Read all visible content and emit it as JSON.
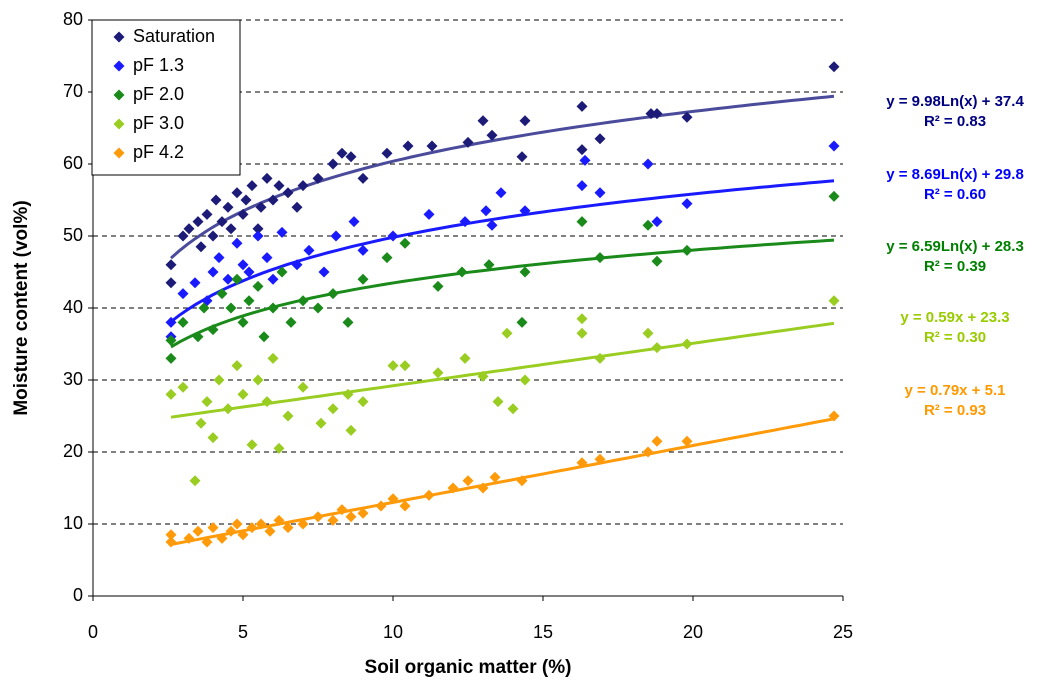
{
  "chart_data": {
    "type": "scatter",
    "x_label": "Soil organic matter (%)",
    "y_label": "Moisture content (vol%)",
    "xlim": [
      0,
      25
    ],
    "xticks": [
      0,
      5,
      10,
      15,
      20,
      25
    ],
    "ylim": [
      0,
      80
    ],
    "yticks": [
      0,
      10,
      20,
      30,
      40,
      50,
      60,
      70,
      80
    ],
    "grid": true,
    "legend": "upper left",
    "series": [
      {
        "name": "Saturation",
        "color": "#1c1c78",
        "line_color": "#4b4b9b",
        "x": [
          2.6,
          2.6,
          3.0,
          3.2,
          3.5,
          3.6,
          3.8,
          4.0,
          4.1,
          4.3,
          4.5,
          4.6,
          4.8,
          5.0,
          5.1,
          5.3,
          5.5,
          5.6,
          5.8,
          6.0,
          6.2,
          6.5,
          6.8,
          7.0,
          7.5,
          8.0,
          8.3,
          8.6,
          9.0,
          9.8,
          10.5,
          11.3,
          12.5,
          13.0,
          13.3,
          14.4,
          14.3,
          16.3,
          16.3,
          16.9,
          18.6,
          18.8,
          19.8,
          24.7
        ],
        "values": [
          46,
          43.5,
          50,
          51,
          52,
          48.5,
          53,
          50,
          55,
          52,
          54,
          51,
          56,
          53,
          55,
          57,
          51,
          54,
          58,
          55,
          57,
          56,
          54,
          57,
          58,
          60,
          61.5,
          61,
          58,
          61.5,
          62.5,
          62.5,
          63,
          66,
          64,
          66,
          61,
          68,
          62,
          63.5,
          67,
          67,
          66.5,
          73.5
        ],
        "trendline": {
          "type": "log",
          "slope": 9.98,
          "intercept": 37.4,
          "equation": "y = 9.98Ln(x) + 37.4",
          "r2": "R² = 0.83",
          "label_color": "#000080"
        }
      },
      {
        "name": "pF 1.3",
        "color": "#1a1aff",
        "line_color": "#1a1aff",
        "x": [
          2.6,
          2.6,
          3.0,
          3.4,
          3.8,
          4.0,
          4.2,
          4.5,
          4.8,
          5.0,
          5.2,
          5.5,
          5.8,
          6.0,
          6.3,
          6.8,
          7.2,
          7.7,
          8.1,
          8.7,
          9.0,
          10.0,
          11.2,
          12.4,
          13.1,
          13.3,
          13.6,
          14.4,
          16.3,
          16.4,
          16.9,
          18.5,
          18.8,
          19.8,
          24.7
        ],
        "values": [
          36,
          38,
          42,
          43.5,
          41,
          45,
          47,
          44,
          49,
          46,
          45,
          50,
          47,
          44,
          50.5,
          46,
          48,
          45,
          50,
          52,
          48,
          50,
          53,
          52,
          53.5,
          51.5,
          56,
          53.5,
          57,
          60.5,
          56,
          60,
          52,
          54.5,
          62.5
        ],
        "trendline": {
          "type": "log",
          "slope": 8.69,
          "intercept": 29.8,
          "equation": "y = 8.69Ln(x) + 29.8",
          "r2": "R² = 0.60",
          "label_color": "#0000ff"
        }
      },
      {
        "name": "pF 2.0",
        "color": "#1a8a1a",
        "line_color": "#1a8a1a",
        "x": [
          2.6,
          2.6,
          3.0,
          3.5,
          3.7,
          4.0,
          4.3,
          4.6,
          4.8,
          5.0,
          5.2,
          5.5,
          5.7,
          6.0,
          6.3,
          6.6,
          7.0,
          7.5,
          8.0,
          8.5,
          9.0,
          9.8,
          10.4,
          11.5,
          12.3,
          13.2,
          14.3,
          14.4,
          16.3,
          16.9,
          18.5,
          18.8,
          19.8,
          24.7
        ],
        "values": [
          33,
          35.5,
          38,
          36,
          40,
          37,
          42,
          40,
          44,
          38,
          41,
          43,
          36,
          40,
          45,
          38,
          41,
          40,
          42,
          38,
          44,
          47,
          49,
          43,
          45,
          46,
          38,
          45,
          52,
          47,
          51.5,
          46.5,
          48,
          55.5
        ],
        "trendline": {
          "type": "log",
          "slope": 6.59,
          "intercept": 28.3,
          "equation": "y = 6.59Ln(x) + 28.3",
          "r2": "R² = 0.39",
          "label_color": "#008000"
        }
      },
      {
        "name": "pF 3.0",
        "color": "#9acd22",
        "line_color": "#9acd22",
        "x": [
          2.6,
          3.0,
          3.4,
          3.6,
          3.8,
          4.0,
          4.2,
          4.5,
          4.8,
          5.0,
          5.3,
          5.5,
          5.8,
          6.0,
          6.2,
          6.5,
          7.0,
          7.6,
          8.0,
          8.5,
          8.6,
          9.0,
          10.0,
          10.4,
          11.5,
          12.4,
          13.0,
          13.5,
          13.8,
          14.0,
          14.4,
          16.3,
          16.3,
          16.9,
          18.5,
          18.8,
          19.8,
          24.7
        ],
        "values": [
          28,
          29,
          16,
          24,
          27,
          22,
          30,
          26,
          32,
          28,
          21,
          30,
          27,
          33,
          20.5,
          25,
          29,
          24,
          26,
          28,
          23,
          27,
          32,
          32,
          31,
          33,
          30.5,
          27,
          36.5,
          26,
          30,
          36.5,
          38.5,
          33,
          36.5,
          34.5,
          35,
          41
        ],
        "trendline": {
          "type": "linear",
          "slope": 0.59,
          "intercept": 23.3,
          "equation": "y = 0.59x + 23.3",
          "r2": "R² = 0.30",
          "label_color": "#99cc00"
        }
      },
      {
        "name": "pF 4.2",
        "color": "#ff9a0a",
        "line_color": "#ff9a0a",
        "x": [
          2.6,
          2.6,
          3.2,
          3.5,
          3.8,
          4.0,
          4.3,
          4.6,
          4.8,
          5.0,
          5.3,
          5.6,
          5.9,
          6.2,
          6.5,
          7.0,
          7.5,
          8.0,
          8.3,
          8.6,
          9.0,
          9.6,
          10.0,
          10.4,
          11.2,
          12.0,
          12.5,
          13.0,
          13.4,
          14.3,
          16.3,
          16.9,
          18.5,
          18.8,
          19.8,
          24.7
        ],
        "values": [
          8.5,
          7.5,
          8,
          9,
          7.5,
          9.5,
          8,
          9,
          10,
          8.5,
          9.5,
          10,
          9,
          10.5,
          9.5,
          10,
          11,
          10.5,
          12,
          11,
          11.5,
          12.5,
          13.5,
          12.5,
          14,
          15,
          16,
          15,
          16.5,
          16,
          18.5,
          19,
          20,
          21.5,
          21.5,
          25
        ],
        "trendline": {
          "type": "linear",
          "slope": 0.79,
          "intercept": 5.1,
          "equation": "y = 0.79x + 5.1",
          "r2": "R² = 0.93",
          "label_color": "#ff9900"
        }
      }
    ]
  }
}
